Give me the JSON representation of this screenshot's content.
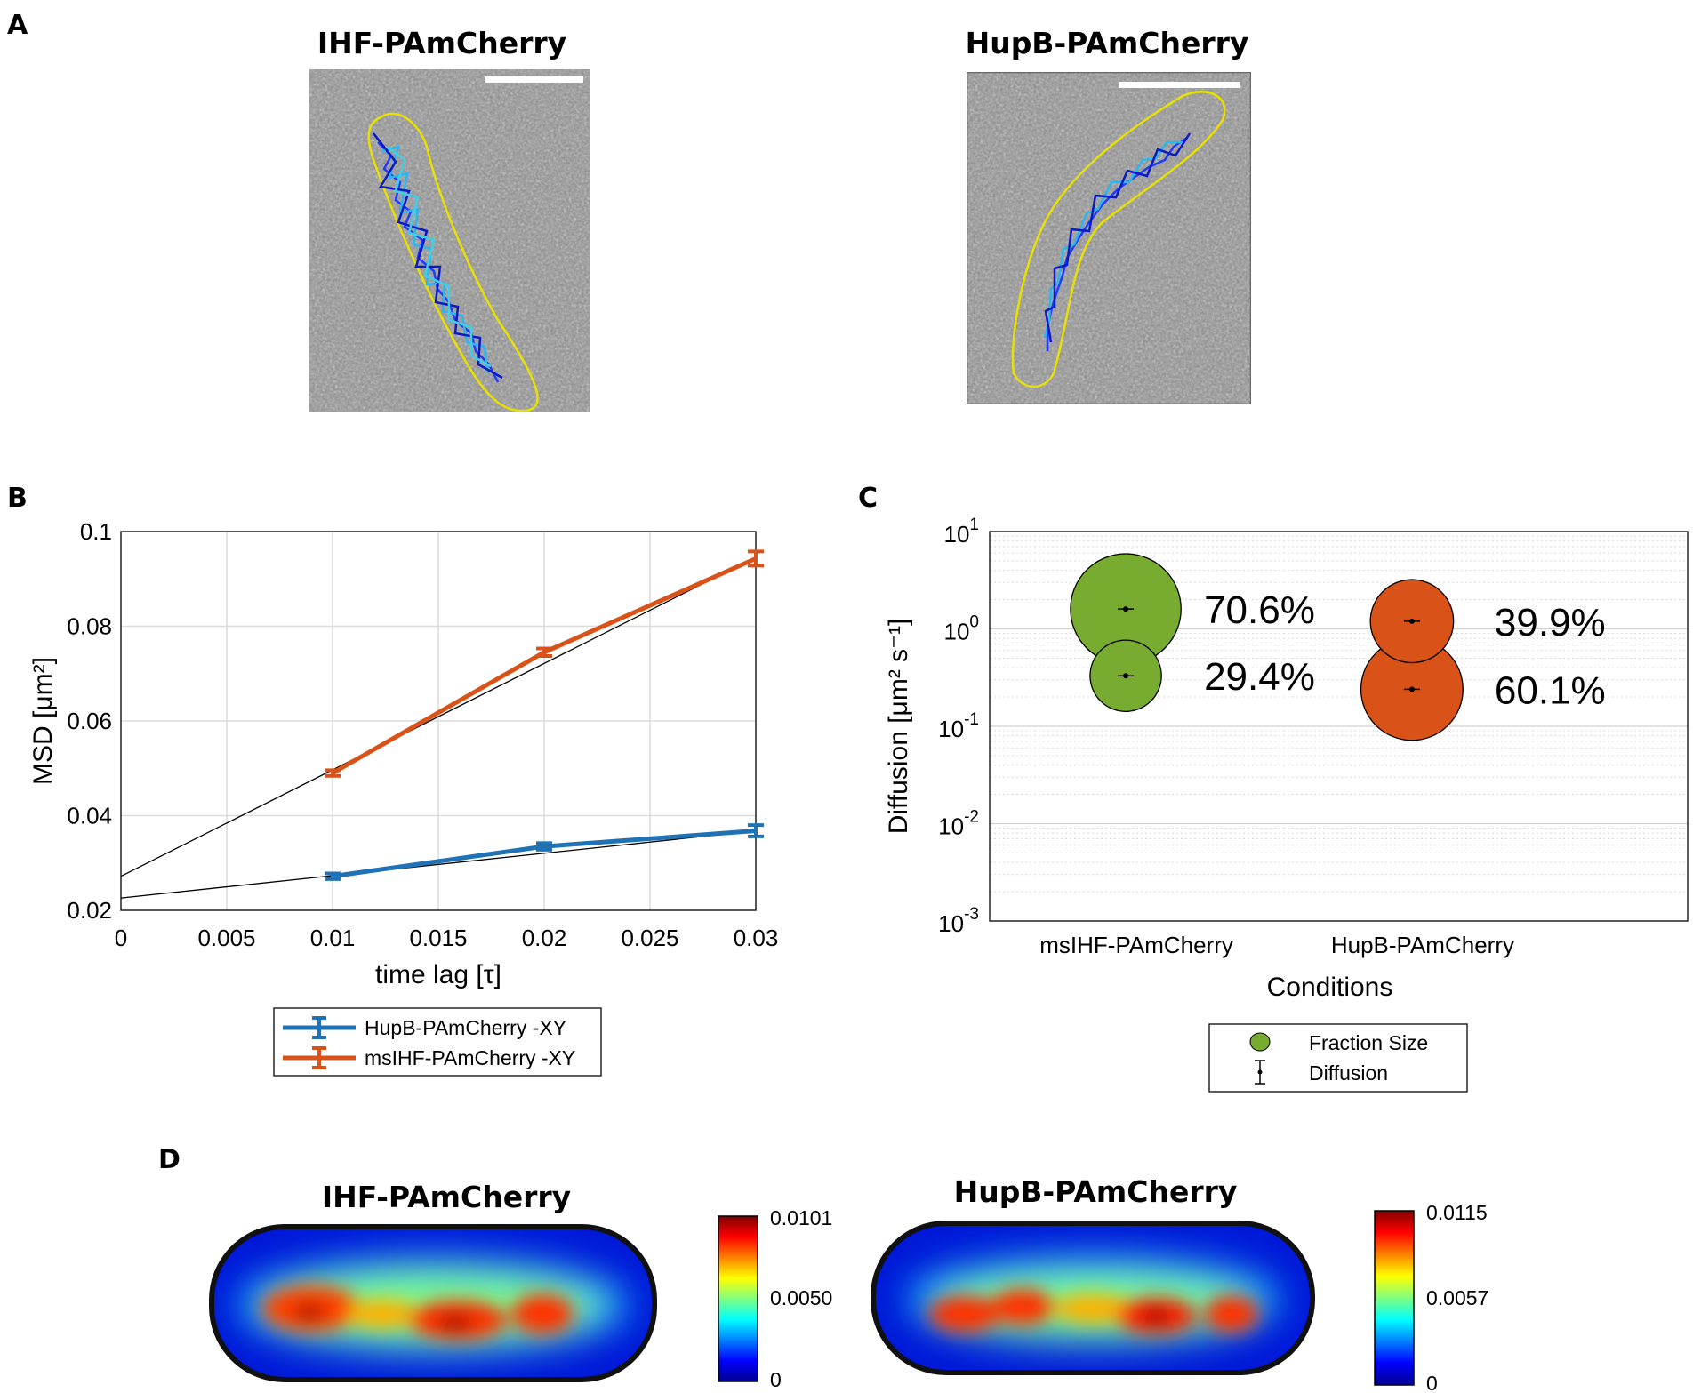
{
  "panels": {
    "a": {
      "letter": "A",
      "images": [
        {
          "title": "IHF-PAmCherry",
          "description": "single-molecule track overlay on cell outline"
        },
        {
          "title": "HupB-PAmCherry",
          "description": "single-molecule track overlay on cell outline"
        }
      ]
    },
    "b": {
      "letter": "B"
    },
    "c": {
      "letter": "C"
    },
    "d": {
      "letter": "D",
      "maps": [
        {
          "title": "IHF-PAmCherry",
          "colorbar_max": "0.0101",
          "colorbar_mid": "0.0050",
          "colorbar_min": "0"
        },
        {
          "title": "HupB-PAmCherry",
          "colorbar_max": "0.0115",
          "colorbar_mid": "0.0057",
          "colorbar_min": "0"
        }
      ]
    }
  },
  "chart_data": [
    {
      "type": "line",
      "panel": "B",
      "xlabel": "time lag [τ]",
      "ylabel": "MSD [μm²]",
      "xlim": [
        0,
        0.03
      ],
      "ylim": [
        0.02,
        0.1
      ],
      "x_ticks": [
        "0",
        "0.005",
        "0.01",
        "0.015",
        "0.02",
        "0.025",
        "0.03"
      ],
      "y_ticks": [
        "0.02",
        "0.04",
        "0.06",
        "0.08",
        "0.1"
      ],
      "grid": true,
      "series": [
        {
          "name": "HupB-PAmCherry -XY",
          "color": "#1f72b5",
          "x": [
            0.01,
            0.02,
            0.03
          ],
          "y": [
            0.0272,
            0.0335,
            0.0368
          ],
          "err": [
            0.0006,
            0.0007,
            0.0012
          ]
        },
        {
          "name": "msIHF-PAmCherry -XY",
          "color": "#d95319",
          "x": [
            0.01,
            0.02,
            0.03
          ],
          "y": [
            0.049,
            0.0745,
            0.0943
          ],
          "err": [
            0.0006,
            0.0008,
            0.0015
          ]
        }
      ],
      "fit_lines": [
        {
          "intercept": 0.0226,
          "slope": 0.473
        },
        {
          "intercept": 0.0272,
          "slope": 2.247
        }
      ],
      "legend_position": "below"
    },
    {
      "type": "scatter",
      "panel": "C",
      "xlabel": "Conditions",
      "ylabel": "Diffusion [μm² s⁻¹]",
      "y_scale": "log",
      "ylim": [
        0.001,
        10
      ],
      "y_tick_exponents": [
        1,
        0,
        -1,
        -2,
        -3
      ],
      "categories": [
        "msIHF-PAmCherry",
        "HupB-PAmCherry"
      ],
      "series": [
        {
          "category": "msIHF-PAmCherry",
          "color": "#77ac30",
          "points": [
            {
              "diffusion": 1.6,
              "fraction": 70.6,
              "label": "70.6%"
            },
            {
              "diffusion": 0.33,
              "fraction": 29.4,
              "label": "29.4%"
            }
          ]
        },
        {
          "category": "HupB-PAmCherry",
          "color": "#d95319",
          "points": [
            {
              "diffusion": 1.2,
              "fraction": 39.9,
              "label": "39.9%"
            },
            {
              "diffusion": 0.24,
              "fraction": 60.1,
              "label": "60.1%"
            }
          ]
        }
      ],
      "legend": [
        {
          "label": "Fraction Size",
          "symbol": "green-circle-icon"
        },
        {
          "label": "Diffusion",
          "symbol": "errorbar-dot-icon"
        }
      ],
      "legend_position": "below"
    }
  ]
}
